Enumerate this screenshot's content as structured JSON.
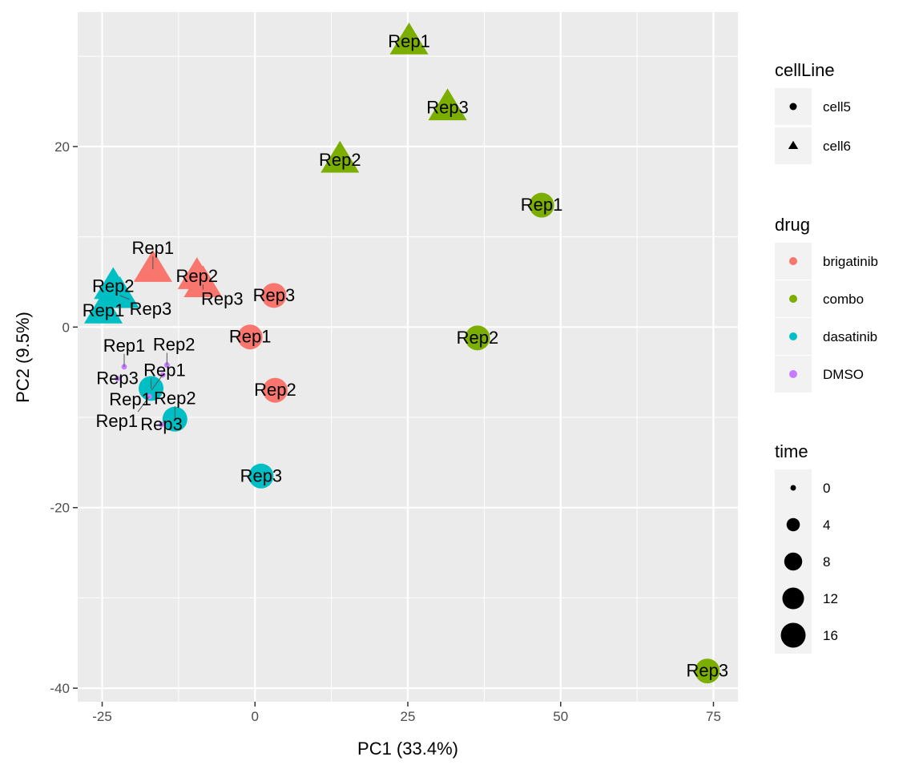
{
  "chart_data": {
    "type": "scatter",
    "xlabel": "PC1 (33.4%)",
    "ylabel": "PC2 (9.5%)",
    "xlim": [
      -29,
      79
    ],
    "ylim": [
      -41.5,
      34.9
    ],
    "x_ticks": [
      -25,
      0,
      25,
      50,
      75
    ],
    "y_ticks": [
      -40,
      -20,
      0,
      20
    ],
    "grid": true,
    "legend_placement": "right",
    "colors": {
      "brigatinib": "#F8766D",
      "combo": "#7CAE00",
      "dasatinib": "#00BFC4",
      "DMSO": "#C77CFF"
    },
    "legends": [
      {
        "title": "cellLine",
        "items": [
          {
            "label": "cell5",
            "shape": "circle"
          },
          {
            "label": "cell6",
            "shape": "triangle"
          }
        ]
      },
      {
        "title": "drug",
        "items": [
          {
            "label": "brigatinib"
          },
          {
            "label": "combo"
          },
          {
            "label": "dasatinib"
          },
          {
            "label": "DMSO"
          }
        ]
      },
      {
        "title": "time",
        "items": [
          {
            "label": "0",
            "value": 0
          },
          {
            "label": "4",
            "value": 4
          },
          {
            "label": "8",
            "value": 8
          },
          {
            "label": "12",
            "value": 12
          },
          {
            "label": "16",
            "value": 16
          }
        ]
      }
    ],
    "points": [
      {
        "label": "Rep1",
        "x": 25.2,
        "y": 31.6,
        "drug": "combo",
        "cellLine": "cell6",
        "time": 16
      },
      {
        "label": "Rep3",
        "x": 31.5,
        "y": 24.3,
        "drug": "combo",
        "cellLine": "cell6",
        "time": 16
      },
      {
        "label": "Rep2",
        "x": 13.9,
        "y": 18.5,
        "drug": "combo",
        "cellLine": "cell6",
        "time": 16
      },
      {
        "label": "Rep1",
        "x": -16.7,
        "y": 6.4,
        "drug": "brigatinib",
        "cellLine": "cell6",
        "time": 16
      },
      {
        "label": "Rep2",
        "x": -9.5,
        "y": 5.6,
        "drug": "brigatinib",
        "cellLine": "cell6",
        "time": 16
      },
      {
        "label": "Rep3",
        "x": -8.5,
        "y": 4.7,
        "drug": "brigatinib",
        "cellLine": "cell6",
        "time": 16
      },
      {
        "label": "Rep2",
        "x": -23.2,
        "y": 4.5,
        "drug": "dasatinib",
        "cellLine": "cell6",
        "time": 16
      },
      {
        "label": "Rep3",
        "x": -22.1,
        "y": 3.5,
        "drug": "dasatinib",
        "cellLine": "cell6",
        "time": 16
      },
      {
        "label": "Rep1",
        "x": -24.8,
        "y": 1.8,
        "drug": "dasatinib",
        "cellLine": "cell6",
        "time": 16
      },
      {
        "label": "Rep1",
        "x": 46.9,
        "y": 13.5,
        "drug": "combo",
        "cellLine": "cell5",
        "time": 16
      },
      {
        "label": "Rep2",
        "x": 36.4,
        "y": -1.2,
        "drug": "combo",
        "cellLine": "cell5",
        "time": 16
      },
      {
        "label": "Rep3",
        "x": 74.0,
        "y": -38.1,
        "drug": "combo",
        "cellLine": "cell5",
        "time": 16
      },
      {
        "label": "Rep3",
        "x": 3.1,
        "y": 3.5,
        "drug": "brigatinib",
        "cellLine": "cell5",
        "time": 16
      },
      {
        "label": "Rep1",
        "x": -0.8,
        "y": -1.1,
        "drug": "brigatinib",
        "cellLine": "cell5",
        "time": 16
      },
      {
        "label": "Rep2",
        "x": 3.3,
        "y": -7.0,
        "drug": "brigatinib",
        "cellLine": "cell5",
        "time": 16
      },
      {
        "label": "Rep3",
        "x": 1.0,
        "y": -16.5,
        "drug": "dasatinib",
        "cellLine": "cell5",
        "time": 16
      },
      {
        "label": "Rep2",
        "x": -13.1,
        "y": -10.2,
        "drug": "dasatinib",
        "cellLine": "cell5",
        "time": 16
      },
      {
        "label": "Rep1",
        "x": -17.0,
        "y": -6.8,
        "drug": "dasatinib",
        "cellLine": "cell5",
        "time": 16
      },
      {
        "label": "Rep2",
        "x": -14.4,
        "y": -4.2,
        "drug": "DMSO",
        "cellLine": "cell5",
        "time": 0
      },
      {
        "label": "Rep1",
        "x": -15.1,
        "y": -5.3,
        "drug": "DMSO",
        "cellLine": "cell5",
        "time": 0
      },
      {
        "label": "Rep3",
        "x": -22.5,
        "y": -5.7,
        "drug": "DMSO",
        "cellLine": "cell5",
        "time": 0
      },
      {
        "label": "Rep1",
        "x": -21.4,
        "y": -4.4,
        "drug": "DMSO",
        "cellLine": "cell5",
        "time": 0
      },
      {
        "label": "Rep1",
        "x": -17.3,
        "y": -7.7,
        "drug": "DMSO",
        "cellLine": "cell5",
        "time": 0
      },
      {
        "label": "Rep3",
        "x": -15.3,
        "y": -10.8,
        "drug": "DMSO",
        "cellLine": "cell5",
        "time": 0
      }
    ]
  }
}
